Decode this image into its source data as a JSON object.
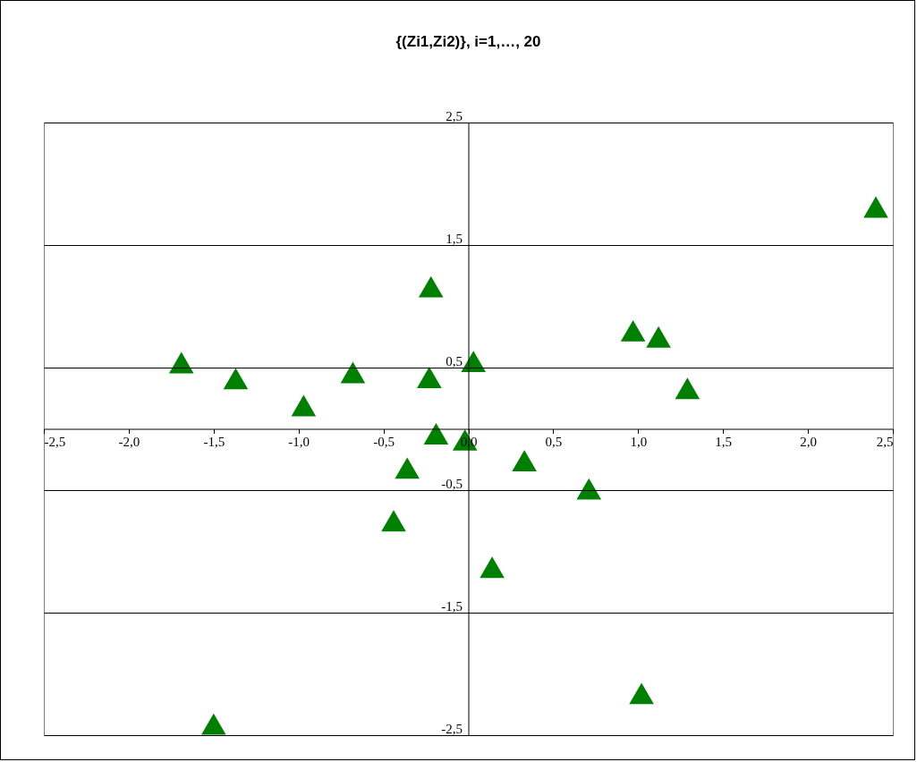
{
  "chart_data": {
    "type": "scatter",
    "title": "{(Zi1,Zi2)}, i=1,…, 20",
    "marker": "triangle",
    "grid": "y",
    "legend": false,
    "x": [
      2.4,
      -0.22,
      0.97,
      1.12,
      -1.69,
      -1.37,
      -0.68,
      0.03,
      -0.23,
      1.29,
      -0.97,
      -0.19,
      -0.02,
      -0.36,
      0.33,
      0.71,
      -0.44,
      0.14,
      1.02,
      -1.5
    ],
    "series": [
      {
        "color": "#008000",
        "values": [
          1.81,
          1.16,
          0.8,
          0.75,
          0.54,
          0.41,
          0.46,
          0.55,
          0.42,
          0.33,
          0.19,
          -0.04,
          -0.09,
          -0.32,
          -0.26,
          -0.49,
          -0.75,
          -1.13,
          -2.16,
          -2.41
        ]
      }
    ],
    "xlim": [
      -2.5,
      2.5
    ],
    "ylim": [
      -2.5,
      2.5
    ],
    "xticks": [
      {
        "value": -2.5,
        "label": "-2,5"
      },
      {
        "value": -2,
        "label": "-2,0"
      },
      {
        "value": -1.5,
        "label": "-1,5"
      },
      {
        "value": -1,
        "label": "-1,0"
      },
      {
        "value": -0.5,
        "label": "-0,5"
      },
      {
        "value": 0,
        "label": "0,0"
      },
      {
        "value": 0.5,
        "label": "0,5"
      },
      {
        "value": 1,
        "label": "1,0"
      },
      {
        "value": 1.5,
        "label": "1,5"
      },
      {
        "value": 2,
        "label": "2,0"
      },
      {
        "value": 2.5,
        "label": "2,5"
      }
    ],
    "yticks": [
      {
        "value": -2.5,
        "label": "-2,5"
      },
      {
        "value": -1.5,
        "label": "-1,5"
      },
      {
        "value": -0.5,
        "label": "-0,5"
      },
      {
        "value": 0.5,
        "label": "0,5"
      },
      {
        "value": 1.5,
        "label": "1,5"
      },
      {
        "value": 2.5,
        "label": "2,5"
      }
    ]
  }
}
